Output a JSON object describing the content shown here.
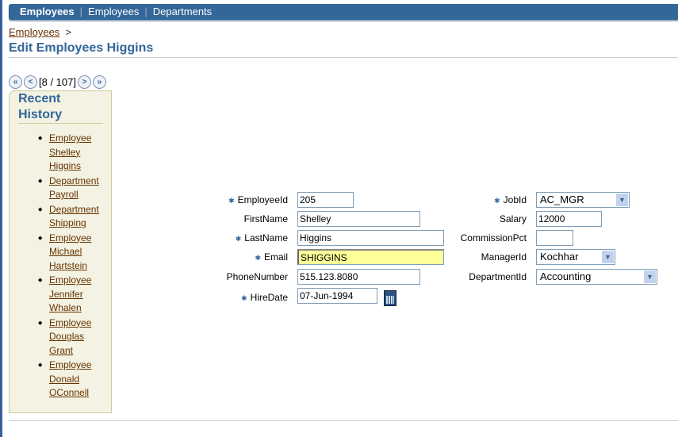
{
  "topbar": {
    "tabs": [
      "Employees",
      "Employees",
      "Departments"
    ]
  },
  "breadcrumb": {
    "link": "Employees",
    "sep": ">"
  },
  "title": "Edit Employees Higgins",
  "pager": {
    "first": "«",
    "prev": "<",
    "text": "[8 / 107]",
    "next": ">",
    "last": "»"
  },
  "history": {
    "title": "Recent History",
    "items": [
      "Employee Shelley Higgins",
      "Department Payroll",
      "Department Shipping",
      "Employee Michael Hartstein",
      "Employee Jennifer Whalen",
      "Employee Douglas Grant",
      "Employee Donald OConnell"
    ]
  },
  "form": {
    "employee_id": {
      "label": "EmployeeId",
      "value": "205",
      "required": true
    },
    "first_name": {
      "label": "FirstName",
      "value": "Shelley"
    },
    "last_name": {
      "label": "LastName",
      "value": "Higgins",
      "required": true
    },
    "email": {
      "label": "Email",
      "value": "SHIGGINS",
      "required": true
    },
    "phone": {
      "label": "PhoneNumber",
      "value": "515.123.8080"
    },
    "hire_date": {
      "label": "HireDate",
      "value": "07-Jun-1994",
      "required": true
    },
    "job_id": {
      "label": "JobId",
      "value": "AC_MGR",
      "required": true
    },
    "salary": {
      "label": "Salary",
      "value": "12000"
    },
    "commission": {
      "label": "CommissionPct",
      "value": ""
    },
    "manager_id": {
      "label": "ManagerId",
      "value": "Kochhar"
    },
    "department_id": {
      "label": "DepartmentId",
      "value": "Accounting"
    }
  },
  "colors": {
    "brand": "#336699",
    "email_highlight": "#ffff99",
    "link": "#663300"
  }
}
